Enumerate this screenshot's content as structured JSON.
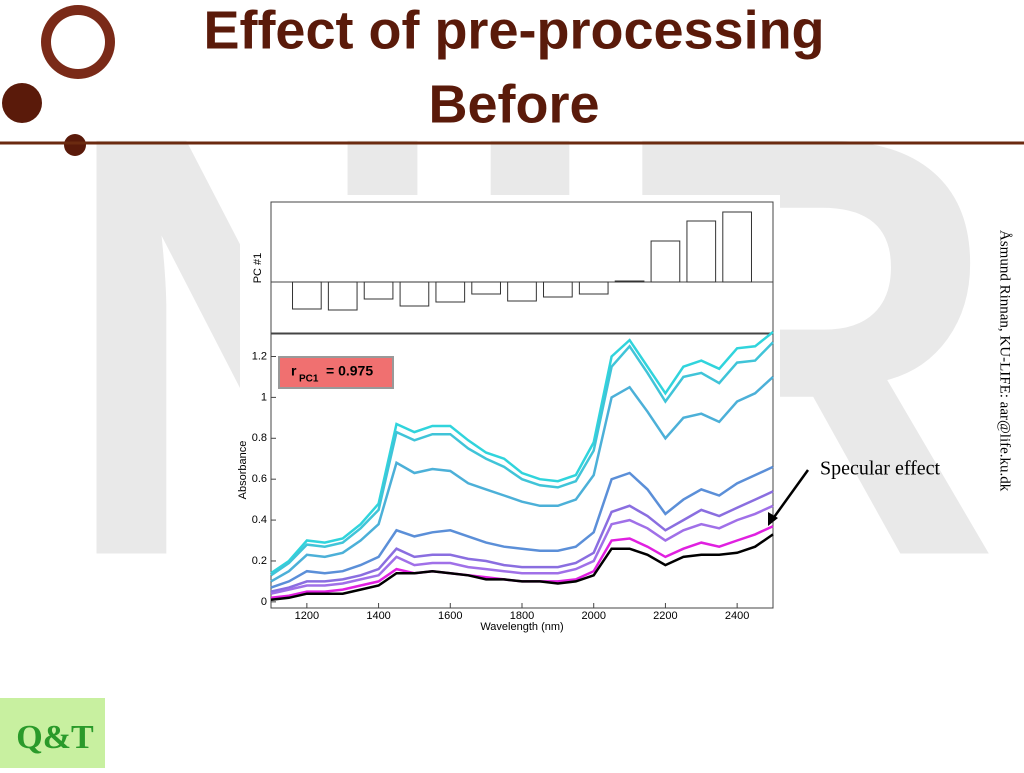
{
  "header": {
    "title": "Effect of pre-processing",
    "subtitle": "Before"
  },
  "watermark": "NIR",
  "side_note": "Åsmund Rinnan, KU-LIFE: aar@life.ku.dk",
  "logo": "Q&T",
  "chart_data": [
    {
      "type": "bar",
      "y_label": "PC #1",
      "color": "#ffffff",
      "edge_color": "#333333",
      "x": [
        1200,
        1300,
        1400,
        1500,
        1600,
        1700,
        1800,
        1900,
        2000,
        2100,
        2200,
        2300,
        2400
      ],
      "values": [
        -27,
        -28,
        -17,
        -24,
        -20,
        -12,
        -19,
        -15,
        -12,
        1,
        41,
        61,
        70
      ],
      "xlim": [
        1100,
        2500
      ],
      "ylim": [
        -51,
        80
      ]
    },
    {
      "type": "line",
      "x_label": "Wavelength (nm)",
      "y_label": "Absorbance",
      "annotation": {
        "symbol": "r",
        "subscript": "PC1",
        "text": "= 0.975"
      },
      "callout": "Specular effect",
      "x": [
        1100,
        1150,
        1200,
        1250,
        1300,
        1350,
        1400,
        1450,
        1500,
        1550,
        1600,
        1650,
        1700,
        1750,
        1800,
        1850,
        1900,
        1950,
        2000,
        2050,
        2100,
        2150,
        2200,
        2250,
        2300,
        2350,
        2400,
        2450,
        2500
      ],
      "series": [
        {
          "color": "#30d4dc",
          "values": [
            0.14,
            0.2,
            0.3,
            0.29,
            0.31,
            0.38,
            0.48,
            0.87,
            0.83,
            0.86,
            0.86,
            0.79,
            0.73,
            0.7,
            0.63,
            0.6,
            0.59,
            0.62,
            0.78,
            1.2,
            1.28,
            1.15,
            1.02,
            1.15,
            1.18,
            1.14,
            1.24,
            1.25,
            1.32
          ]
        },
        {
          "color": "#40c4d8",
          "values": [
            0.13,
            0.19,
            0.28,
            0.27,
            0.29,
            0.36,
            0.45,
            0.83,
            0.79,
            0.82,
            0.82,
            0.75,
            0.7,
            0.66,
            0.6,
            0.57,
            0.56,
            0.59,
            0.74,
            1.15,
            1.25,
            1.12,
            0.98,
            1.1,
            1.12,
            1.07,
            1.17,
            1.18,
            1.27
          ]
        },
        {
          "color": "#4cb0d8",
          "values": [
            0.1,
            0.15,
            0.23,
            0.22,
            0.24,
            0.3,
            0.38,
            0.68,
            0.63,
            0.65,
            0.64,
            0.58,
            0.55,
            0.52,
            0.49,
            0.47,
            0.47,
            0.5,
            0.62,
            1.0,
            1.05,
            0.93,
            0.8,
            0.9,
            0.92,
            0.88,
            0.98,
            1.02,
            1.1
          ]
        },
        {
          "color": "#5b8fd8",
          "values": [
            0.07,
            0.1,
            0.15,
            0.14,
            0.15,
            0.18,
            0.22,
            0.35,
            0.32,
            0.34,
            0.35,
            0.32,
            0.29,
            0.27,
            0.26,
            0.25,
            0.25,
            0.27,
            0.34,
            0.6,
            0.63,
            0.55,
            0.43,
            0.5,
            0.55,
            0.52,
            0.58,
            0.62,
            0.66
          ]
        },
        {
          "color": "#8a6ee0",
          "values": [
            0.05,
            0.07,
            0.1,
            0.1,
            0.11,
            0.13,
            0.16,
            0.26,
            0.22,
            0.23,
            0.23,
            0.21,
            0.2,
            0.18,
            0.17,
            0.17,
            0.17,
            0.19,
            0.24,
            0.44,
            0.47,
            0.42,
            0.35,
            0.4,
            0.45,
            0.42,
            0.46,
            0.5,
            0.54
          ]
        },
        {
          "color": "#a070e8",
          "values": [
            0.04,
            0.06,
            0.08,
            0.08,
            0.09,
            0.11,
            0.13,
            0.22,
            0.18,
            0.19,
            0.19,
            0.17,
            0.16,
            0.15,
            0.14,
            0.14,
            0.14,
            0.16,
            0.2,
            0.38,
            0.4,
            0.36,
            0.3,
            0.35,
            0.38,
            0.36,
            0.4,
            0.43,
            0.47
          ]
        },
        {
          "color": "#e020e0",
          "values": [
            0.02,
            0.03,
            0.05,
            0.05,
            0.06,
            0.08,
            0.1,
            0.16,
            0.14,
            0.15,
            0.14,
            0.13,
            0.12,
            0.11,
            0.1,
            0.1,
            0.1,
            0.11,
            0.15,
            0.3,
            0.31,
            0.27,
            0.22,
            0.26,
            0.29,
            0.27,
            0.3,
            0.33,
            0.37
          ]
        },
        {
          "color": "#000000",
          "values": [
            0.01,
            0.02,
            0.04,
            0.04,
            0.04,
            0.06,
            0.08,
            0.14,
            0.14,
            0.15,
            0.14,
            0.13,
            0.11,
            0.11,
            0.1,
            0.1,
            0.09,
            0.1,
            0.13,
            0.26,
            0.26,
            0.23,
            0.18,
            0.22,
            0.23,
            0.23,
            0.24,
            0.27,
            0.33
          ]
        }
      ],
      "xlim": [
        1100,
        2500
      ],
      "ylim": [
        -0.03,
        1.31
      ],
      "xticks": [
        1200,
        1400,
        1600,
        1800,
        2000,
        2200,
        2400
      ],
      "yticks": [
        0,
        0.2,
        0.4,
        0.6,
        0.8,
        1,
        1.2
      ]
    }
  ]
}
